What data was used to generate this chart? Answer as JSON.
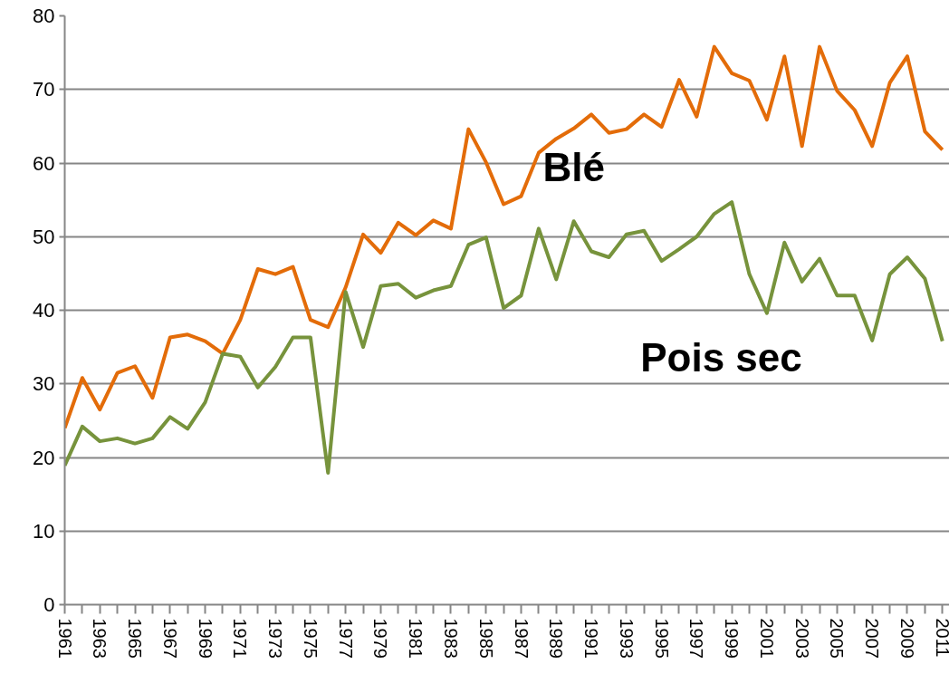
{
  "chart_data": {
    "type": "line",
    "x": [
      1961,
      1962,
      1963,
      1964,
      1965,
      1966,
      1967,
      1968,
      1969,
      1970,
      1971,
      1972,
      1973,
      1974,
      1975,
      1976,
      1977,
      1978,
      1979,
      1980,
      1981,
      1982,
      1983,
      1984,
      1985,
      1986,
      1987,
      1988,
      1989,
      1990,
      1991,
      1992,
      1993,
      1994,
      1995,
      1996,
      1997,
      1998,
      1999,
      2000,
      2001,
      2002,
      2003,
      2004,
      2005,
      2006,
      2007,
      2008,
      2009,
      2010,
      2011
    ],
    "series": [
      {
        "name": "Blé",
        "color": "#e36c09",
        "values": [
          24.0,
          30.8,
          26.5,
          31.5,
          32.4,
          28.1,
          36.3,
          36.7,
          35.8,
          34.1,
          38.7,
          45.6,
          44.9,
          45.9,
          38.7,
          37.7,
          43.1,
          50.3,
          47.8,
          51.9,
          50.2,
          52.2,
          51.1,
          64.6,
          60.1,
          54.4,
          55.5,
          61.4,
          63.3,
          64.7,
          66.6,
          64.1,
          64.6,
          66.6,
          64.9,
          71.3,
          66.3,
          75.8,
          72.2,
          71.2,
          65.9,
          74.5,
          62.3,
          75.8,
          69.8,
          67.2,
          62.3,
          70.9,
          74.5,
          64.3,
          61.8
        ]
      },
      {
        "name": "Pois sec",
        "color": "#77933c",
        "values": [
          18.9,
          24.2,
          22.2,
          22.6,
          21.9,
          22.6,
          25.5,
          23.9,
          27.5,
          34.1,
          33.7,
          29.5,
          32.3,
          36.3,
          36.3,
          17.9,
          42.5,
          35.0,
          43.3,
          43.6,
          41.7,
          42.7,
          43.3,
          48.9,
          49.9,
          40.3,
          42.0,
          51.1,
          44.2,
          52.1,
          48.0,
          47.2,
          50.3,
          50.8,
          46.7,
          48.3,
          50.0,
          53.1,
          54.7,
          44.9,
          39.6,
          49.2,
          43.9,
          47.0,
          42.0,
          42.0,
          35.9,
          44.9,
          47.2,
          44.3,
          35.8
        ]
      }
    ],
    "xlim": [
      1961,
      2011.4
    ],
    "xticks": [
      1961,
      {
        "value": 1962,
        "label": null
      },
      1963,
      {
        "value": 1964,
        "label": null
      },
      1965,
      {
        "value": 1966,
        "label": null
      },
      1967,
      {
        "value": 1968,
        "label": null
      },
      1969,
      {
        "value": 1970,
        "label": null
      },
      1971,
      {
        "value": 1972,
        "label": null
      },
      1973,
      {
        "value": 1974,
        "label": null
      },
      1975,
      {
        "value": 1976,
        "label": null
      },
      1977,
      {
        "value": 1978,
        "label": null
      },
      1979,
      {
        "value": 1980,
        "label": null
      },
      1981,
      {
        "value": 1982,
        "label": null
      },
      1983,
      {
        "value": 1984,
        "label": null
      },
      1985,
      {
        "value": 1986,
        "label": null
      },
      1987,
      {
        "value": 1988,
        "label": null
      },
      1989,
      {
        "value": 1990,
        "label": null
      },
      1991,
      {
        "value": 1992,
        "label": null
      },
      1993,
      {
        "value": 1994,
        "label": null
      },
      1995,
      {
        "value": 1996,
        "label": null
      },
      1997,
      {
        "value": 1998,
        "label": null
      },
      1999,
      {
        "value": 2000,
        "label": null
      },
      2001,
      {
        "value": 2002,
        "label": null
      },
      2003,
      {
        "value": 2004,
        "label": null
      },
      2005,
      {
        "value": 2006,
        "label": null
      },
      2007,
      {
        "value": 2008,
        "label": null
      },
      2009,
      {
        "value": 2010,
        "label": null
      },
      2011
    ],
    "ylim": [
      0,
      80
    ],
    "yticks": [
      0,
      10,
      20,
      30,
      40,
      50,
      60,
      70,
      80
    ],
    "grid": "y",
    "legend": false,
    "marker": "none",
    "line_style": "solid"
  }
}
